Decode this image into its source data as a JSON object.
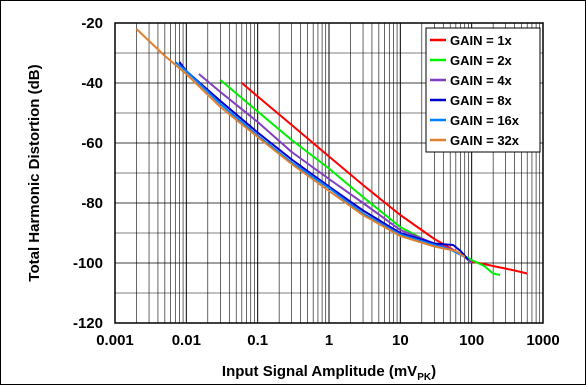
{
  "chart_data": {
    "type": "line",
    "xlabel": "Input Signal Amplitude (mV",
    "xlabel_sub": "PK",
    "xlabel_close": ")",
    "ylabel": "Total Harmonic Distortion (dB)",
    "x_scale": "log",
    "xlim": [
      0.001,
      1000
    ],
    "ylim": [
      -120,
      -20
    ],
    "x_ticks": [
      0.001,
      0.01,
      0.1,
      1,
      10,
      100,
      1000
    ],
    "x_tick_labels": [
      "0.001",
      "0.01",
      "0.1",
      "1",
      "10",
      "100",
      "1000"
    ],
    "y_ticks": [
      -20,
      -40,
      -60,
      -80,
      -100,
      -120
    ],
    "y_tick_labels": [
      "-20",
      "-40",
      "-60",
      "-80",
      "-100",
      "-120"
    ],
    "grid": true,
    "legend_position": "top-right",
    "series": [
      {
        "name": "GAIN = 1x",
        "color": "#ff0000",
        "points": [
          [
            0.06,
            -40
          ],
          [
            0.1,
            -44.5
          ],
          [
            0.3,
            -54
          ],
          [
            1,
            -64.5
          ],
          [
            3,
            -74
          ],
          [
            10,
            -84
          ],
          [
            30,
            -92
          ],
          [
            70,
            -97
          ],
          [
            100,
            -99.5
          ],
          [
            200,
            -101
          ],
          [
            400,
            -102.5
          ],
          [
            600,
            -103.5
          ]
        ]
      },
      {
        "name": "GAIN = 2x",
        "color": "#00ee00",
        "points": [
          [
            0.03,
            -39
          ],
          [
            0.1,
            -49.5
          ],
          [
            0.3,
            -59
          ],
          [
            1,
            -68.5
          ],
          [
            3,
            -78
          ],
          [
            10,
            -88
          ],
          [
            30,
            -94
          ],
          [
            60,
            -96
          ],
          [
            100,
            -99
          ],
          [
            150,
            -101
          ],
          [
            200,
            -103.5
          ],
          [
            250,
            -104
          ]
        ]
      },
      {
        "name": "GAIN = 4x",
        "color": "#7f3fbf",
        "points": [
          [
            0.015,
            -37
          ],
          [
            0.03,
            -43
          ],
          [
            0.1,
            -53
          ],
          [
            0.3,
            -63
          ],
          [
            1,
            -72
          ],
          [
            3,
            -80
          ],
          [
            10,
            -89
          ],
          [
            30,
            -93.5
          ],
          [
            60,
            -96
          ],
          [
            80,
            -98
          ],
          [
            100,
            -100
          ]
        ]
      },
      {
        "name": "GAIN = 8x",
        "color": "#0000cc",
        "points": [
          [
            0.008,
            -33
          ],
          [
            0.01,
            -36
          ],
          [
            0.03,
            -46
          ],
          [
            0.1,
            -56.5
          ],
          [
            0.3,
            -65.5
          ],
          [
            1,
            -74.5
          ],
          [
            3,
            -82.5
          ],
          [
            10,
            -90
          ],
          [
            30,
            -93.5
          ],
          [
            55,
            -94
          ],
          [
            70,
            -96
          ],
          [
            90,
            -99
          ]
        ]
      },
      {
        "name": "GAIN = 16x",
        "color": "#0080ff",
        "points": [
          [
            0.007,
            -33
          ],
          [
            0.01,
            -36
          ],
          [
            0.03,
            -47
          ],
          [
            0.1,
            -57.5
          ],
          [
            0.3,
            -66.5
          ],
          [
            1,
            -75
          ],
          [
            3,
            -83.5
          ],
          [
            10,
            -90.5
          ],
          [
            30,
            -94
          ],
          [
            50,
            -95.5
          ],
          [
            80,
            -98
          ]
        ]
      },
      {
        "name": "GAIN = 32x",
        "color": "#e08030",
        "points": [
          [
            0.002,
            -22
          ],
          [
            0.005,
            -31
          ],
          [
            0.01,
            -37
          ],
          [
            0.03,
            -48
          ],
          [
            0.1,
            -58
          ],
          [
            0.3,
            -67
          ],
          [
            1,
            -76
          ],
          [
            3,
            -84
          ],
          [
            10,
            -91
          ],
          [
            30,
            -94.5
          ],
          [
            60,
            -96
          ],
          [
            80,
            -98
          ]
        ]
      }
    ]
  }
}
